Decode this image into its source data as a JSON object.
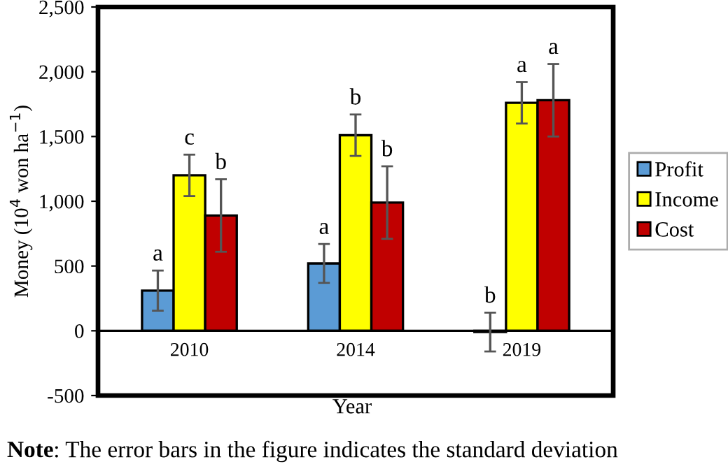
{
  "chart_data": {
    "type": "bar",
    "categories": [
      "2010",
      "2014",
      "2019"
    ],
    "xlabel": "Year",
    "ylabel": "Money (10$^{4}$ won ha$^{−1}$)",
    "ylim": [
      -500,
      2500
    ],
    "yticks": [
      {
        "value": -500,
        "label": "-500"
      },
      0,
      {
        "value": 500,
        "label": "500"
      },
      {
        "value": 1000,
        "label": "1,000"
      },
      {
        "value": 1500,
        "label": "1,500"
      },
      {
        "value": 2000,
        "label": "2,000"
      },
      {
        "value": 2500,
        "label": "2,500"
      }
    ],
    "series": [
      {
        "name": "Profit",
        "color": "#5b9bd5",
        "values": [
          310,
          520,
          -10
        ],
        "errors": [
          155,
          150,
          150
        ],
        "value_labels": [
          "a",
          "a",
          "b"
        ]
      },
      {
        "name": "Income",
        "color": "#ffff00",
        "values": [
          1200,
          1510,
          1760
        ],
        "errors": [
          160,
          160,
          160
        ],
        "value_labels": [
          "c",
          "b",
          "a"
        ]
      },
      {
        "name": "Cost",
        "color": "#c00000",
        "values": [
          890,
          990,
          1780
        ],
        "errors": [
          280,
          280,
          280
        ],
        "value_labels": [
          "b",
          "b",
          "a"
        ]
      }
    ],
    "legend": "right",
    "grid": false,
    "annotations": [
      "Note: The error bars in the figure indicates the standard deviation"
    ]
  }
}
